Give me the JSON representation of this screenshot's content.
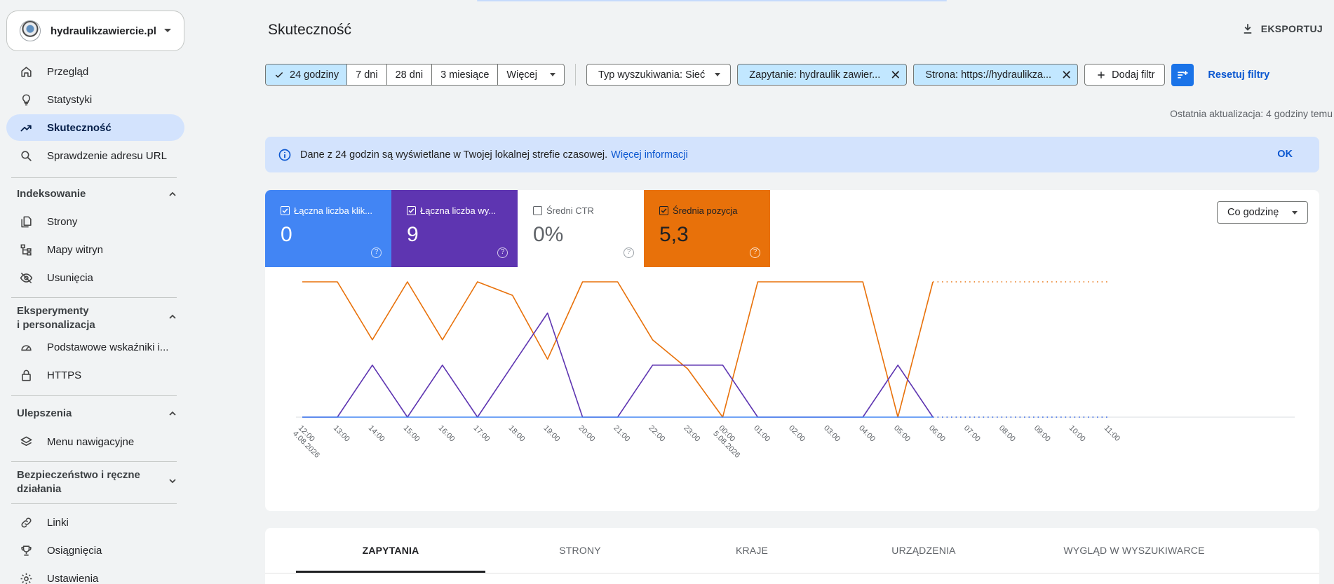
{
  "property": {
    "name": "hydraulikzawiercie.pl"
  },
  "nav": {
    "overview": "Przegląd",
    "insights": "Statystyki",
    "performance": "Skuteczność",
    "url_inspection": "Sprawdzenie adresu URL",
    "indexing_header": "Indeksowanie",
    "pages": "Strony",
    "sitemaps": "Mapy witryn",
    "removals": "Usunięcia",
    "experiments_header_1": "Eksperymenty",
    "experiments_header_2": "i personalizacja",
    "core_web_vitals": "Podstawowe wskaźniki i...",
    "https": "HTTPS",
    "enhancements_header": "Ulepszenia",
    "breadcrumbs": "Menu nawigacyjne",
    "security_header_1": "Bezpieczeństwo i ręczne",
    "security_header_2": "działania",
    "links": "Linki",
    "achievements": "Osiągnięcia",
    "settings": "Ustawienia"
  },
  "header": {
    "title": "Skuteczność",
    "export_label": "EKSPORTUJ"
  },
  "date_filters": {
    "options": [
      "24 godziny",
      "7 dni",
      "28 dni",
      "3 miesiące",
      "Więcej"
    ],
    "selected": "24 godziny"
  },
  "filters": {
    "search_type": "Typ wyszukiwania: Sieć",
    "query": "Zapytanie: hydraulik zawier...",
    "page": "Strona: https://hydraulikza...",
    "add_filter": "Dodaj filtr",
    "reset": "Resetuj filtry"
  },
  "last_update": "Ostatnia aktualizacja: 4 godziny temu",
  "banner": {
    "text": "Dane z 24 godzin są wyświetlane w Twojej lokalnej strefie czasowej.",
    "link": "Więcej informacji",
    "ok": "OK"
  },
  "metrics": [
    {
      "label": "Łączna liczba klik...",
      "value": "0",
      "checked": true,
      "color": "#4285f4"
    },
    {
      "label": "Łączna liczba wy...",
      "value": "9",
      "checked": true,
      "color": "#5e35b1"
    },
    {
      "label": "Średni CTR",
      "value": "0%",
      "checked": false,
      "color": "#ffffff"
    },
    {
      "label": "Średnia pozycja",
      "value": "5,3",
      "checked": true,
      "color": "#e8710a"
    }
  ],
  "granularity": "Co godzinę",
  "chart_data": {
    "type": "line",
    "categories": [
      "12:00",
      "13:00",
      "14:00",
      "15:00",
      "16:00",
      "17:00",
      "18:00",
      "19:00",
      "20:00",
      "21:00",
      "22:00",
      "23:00",
      "00:00",
      "01:00",
      "02:00",
      "03:00",
      "04:00",
      "05:00",
      "06:00",
      "07:00",
      "08:00",
      "09:00",
      "10:00",
      "11:00"
    ],
    "date_labels": {
      "0": "4.08.2026",
      "12": "5.08.2026"
    },
    "series": [
      {
        "name": "Łączna liczba klik...",
        "color": "#4285f4",
        "values": [
          0,
          0,
          0,
          0,
          0,
          0,
          0,
          0,
          0,
          0,
          0,
          0,
          0,
          0,
          0,
          0,
          0,
          0,
          0,
          null,
          null,
          null,
          null,
          null
        ],
        "projected": [
          null,
          null,
          null,
          null,
          null,
          null,
          null,
          null,
          null,
          null,
          null,
          null,
          null,
          null,
          null,
          null,
          null,
          null,
          0,
          0,
          0,
          0,
          0,
          0
        ]
      },
      {
        "name": "Łączna liczba wy...",
        "color": "#5e35b1",
        "values": [
          0,
          0,
          1,
          0,
          1,
          0,
          1,
          2,
          0,
          0,
          1,
          1,
          1,
          0,
          0,
          0,
          0,
          1,
          0,
          null,
          null,
          null,
          null,
          null
        ],
        "projected": [
          null,
          null,
          null,
          null,
          null,
          null,
          null,
          null,
          null,
          null,
          null,
          null,
          null,
          null,
          null,
          null,
          null,
          null,
          0,
          0,
          0,
          0,
          0,
          0
        ]
      },
      {
        "name": "Średnia pozycja",
        "color": "#e8710a",
        "values": [
          1,
          1,
          4,
          1,
          4,
          1,
          1.7,
          5,
          1,
          1,
          4,
          5.5,
          8,
          1,
          1,
          1,
          1,
          8,
          1,
          null,
          null,
          null,
          null,
          null
        ],
        "projected": [
          null,
          null,
          null,
          null,
          null,
          null,
          null,
          null,
          null,
          null,
          null,
          null,
          null,
          null,
          null,
          null,
          null,
          null,
          1,
          1,
          1,
          1,
          1,
          1
        ]
      }
    ],
    "left_axis_range": [
      0,
      2.6
    ],
    "right_axis_range": [
      1,
      8
    ],
    "right_axis_inverted": true,
    "grid": false,
    "legend": "metric cards above chart"
  },
  "tabs": [
    "ZAPYTANIA",
    "STRONY",
    "KRAJE",
    "URZĄDZENIA",
    "WYGLĄD W WYSZUKIWARCE"
  ],
  "active_tab": "ZAPYTANIA"
}
